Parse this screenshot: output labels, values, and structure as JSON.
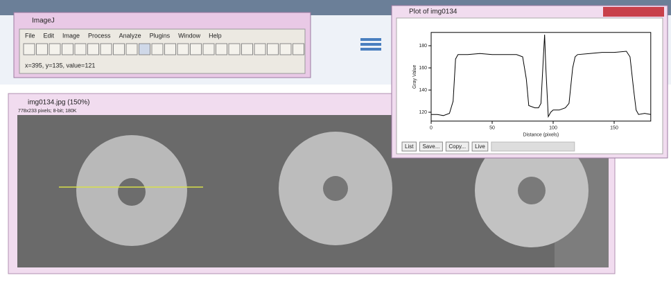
{
  "imagej_window": {
    "title": "ImageJ",
    "menus": [
      "File",
      "Edit",
      "Image",
      "Process",
      "Analyze",
      "Plugins",
      "Window",
      "Help"
    ],
    "status": "x=395, y=135, value=121"
  },
  "image_window": {
    "title": "img0134.jpg (150%)",
    "info": "778x233 pixels; 8-bit; 180K"
  },
  "plot_window": {
    "title": "Plot of img0134",
    "buttons": [
      "List",
      "Save...",
      "Copy...",
      "Live"
    ],
    "chart_data": {
      "type": "line",
      "xlabel": "Distance (pixels)",
      "ylabel": "Gray Value",
      "x": [
        0,
        5,
        10,
        15,
        18,
        20,
        22,
        30,
        40,
        50,
        60,
        70,
        75,
        78,
        80,
        85,
        88,
        90,
        92,
        93,
        94,
        96,
        98,
        100,
        105,
        110,
        113,
        116,
        118,
        120,
        130,
        140,
        150,
        160,
        163,
        166,
        168,
        170,
        175,
        180
      ],
      "values": [
        118,
        118,
        117,
        119,
        130,
        168,
        172,
        172,
        173,
        172,
        172,
        172,
        170,
        150,
        126,
        124,
        124,
        128,
        170,
        190,
        160,
        116,
        120,
        122,
        122,
        124,
        128,
        160,
        170,
        172,
        173,
        174,
        174,
        175,
        170,
        140,
        122,
        118,
        119,
        118
      ],
      "color": "#000000",
      "xlim": [
        0,
        180
      ],
      "ylim": [
        112,
        192
      ],
      "xticks": [
        0,
        50,
        100,
        150
      ],
      "yticks": [
        120,
        140,
        160,
        180
      ]
    }
  }
}
